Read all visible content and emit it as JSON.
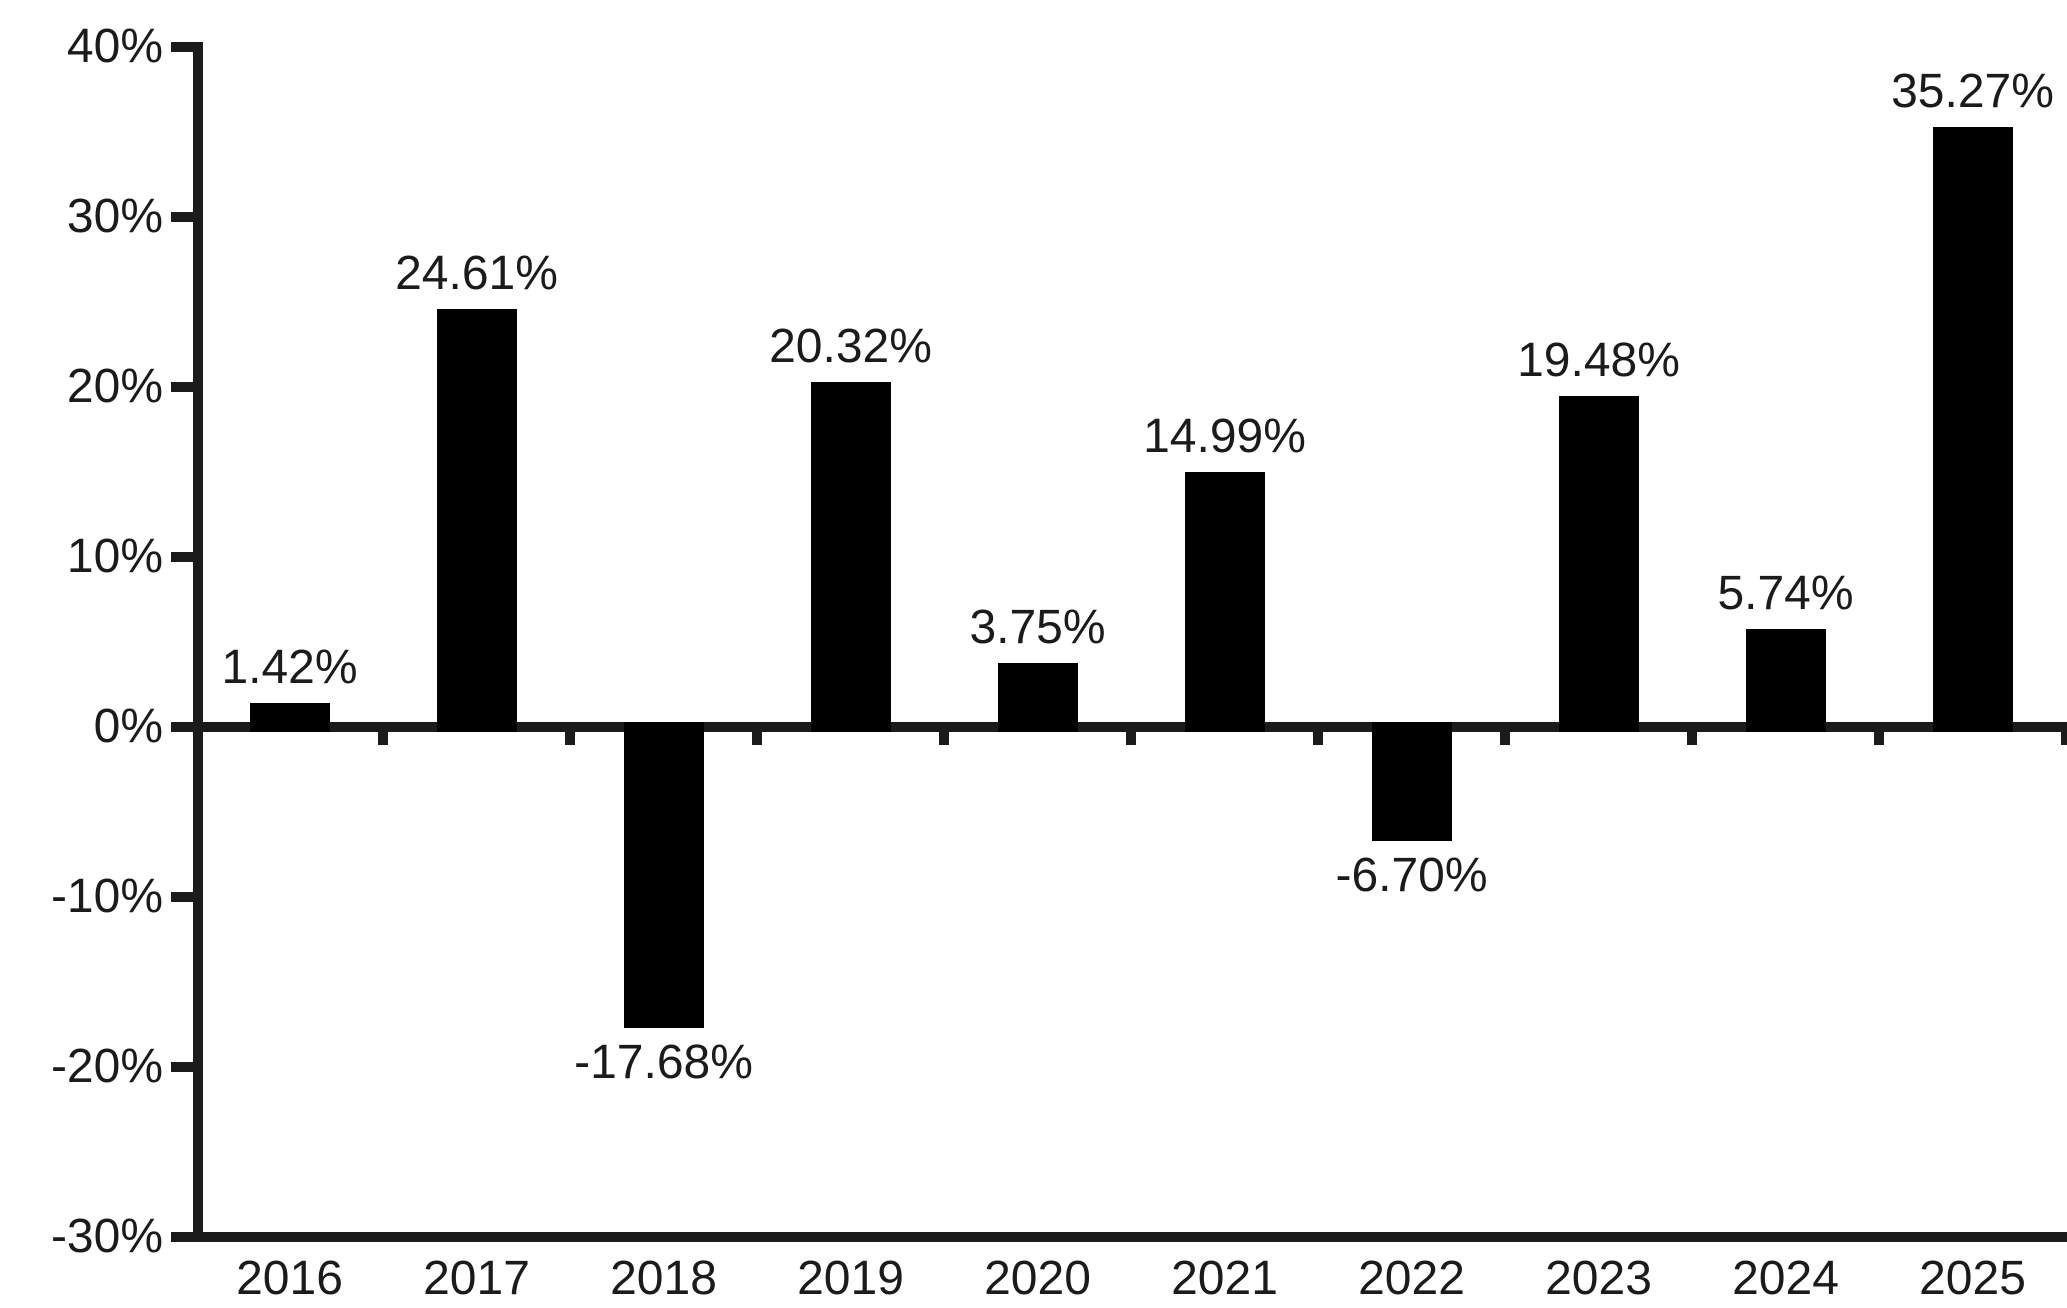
{
  "chart_data": {
    "type": "bar",
    "title": "",
    "xlabel": "",
    "ylabel": "",
    "categories": [
      "2016",
      "2017",
      "2018",
      "2019",
      "2020",
      "2021",
      "2022",
      "2023",
      "2024",
      "2025"
    ],
    "values": [
      1.42,
      24.61,
      -17.68,
      20.32,
      3.75,
      14.99,
      -6.7,
      19.48,
      5.74,
      35.27
    ],
    "point_labels": [
      "1.42%",
      "24.61%",
      "-17.68%",
      "20.32%",
      "3.75%",
      "14.99%",
      "-6.70%",
      "19.48%",
      "5.74%",
      "35.27%"
    ],
    "ytick_values": [
      40,
      30,
      20,
      10,
      0,
      -10,
      -20,
      -30
    ],
    "ytick_labels": [
      "40%",
      "30%",
      "20%",
      "10%",
      "0%",
      "-10%",
      "-20%",
      "-30%"
    ],
    "ylim": [
      -30,
      40
    ],
    "grid": false,
    "legend": null,
    "bar_color": "#000000",
    "axis_color": "#1b1b1b",
    "text_color": "#1b1b1b",
    "background_color": "#ffffff"
  }
}
